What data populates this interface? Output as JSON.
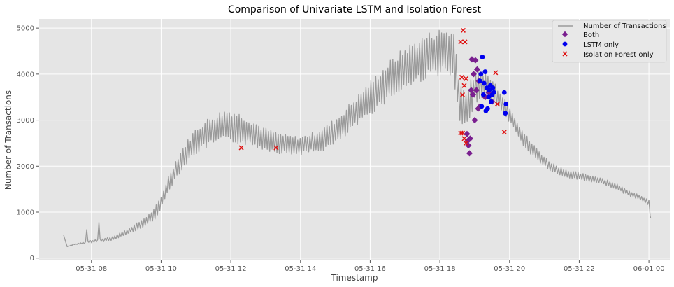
{
  "chart_data": {
    "type": "line",
    "title": "Comparison of Univariate LSTM and Isolation Forest",
    "xlabel": "Timestamp",
    "ylabel": "Number of Transactions",
    "x_axis": {
      "unit": "hour",
      "min": 6.5,
      "max": 24.6
    },
    "xticks": [
      {
        "value": 8,
        "label": "05-31 08"
      },
      {
        "value": 10,
        "label": "05-31 10"
      },
      {
        "value": 12,
        "label": "05-31 12"
      },
      {
        "value": 14,
        "label": "05-31 14"
      },
      {
        "value": 16,
        "label": "05-31 16"
      },
      {
        "value": 18,
        "label": "05-31 18"
      },
      {
        "value": 20,
        "label": "05-31 20"
      },
      {
        "value": 22,
        "label": "05-31 22"
      },
      {
        "value": 24,
        "label": "06-01 00"
      }
    ],
    "ylim": [
      -50,
      5200
    ],
    "yticks": [
      0,
      1000,
      2000,
      3000,
      4000,
      5000
    ],
    "grid": true,
    "legend_position": "top-right",
    "colors": {
      "background": "#e5e5e5",
      "grid": "#ffffff",
      "line": "#9a9a9a",
      "both": "#7a1f8f",
      "lstm": "#0000ee",
      "iforest": "#e01010"
    },
    "series": [
      {
        "name": "Number of Transactions",
        "kind": "line",
        "points": [
          [
            7.2,
            510
          ],
          [
            7.3,
            250
          ],
          [
            7.5,
            300
          ],
          [
            7.8,
            330
          ],
          [
            8.0,
            360
          ],
          [
            8.2,
            380
          ],
          [
            8.4,
            400
          ],
          [
            8.6,
            430
          ],
          [
            8.8,
            500
          ],
          [
            9.0,
            560
          ],
          [
            9.2,
            640
          ],
          [
            9.4,
            720
          ],
          [
            9.6,
            820
          ],
          [
            9.8,
            950
          ],
          [
            10.0,
            1200
          ],
          [
            10.2,
            1600
          ],
          [
            10.4,
            1900
          ],
          [
            10.6,
            2150
          ],
          [
            10.8,
            2350
          ],
          [
            11.0,
            2550
          ],
          [
            11.2,
            2650
          ],
          [
            11.4,
            2750
          ],
          [
            11.6,
            2820
          ],
          [
            11.8,
            2870
          ],
          [
            12.0,
            2870
          ],
          [
            12.2,
            2830
          ],
          [
            12.4,
            2780
          ],
          [
            12.6,
            2720
          ],
          [
            12.8,
            2650
          ],
          [
            13.0,
            2590
          ],
          [
            13.2,
            2540
          ],
          [
            13.4,
            2500
          ],
          [
            13.6,
            2470
          ],
          [
            13.8,
            2450
          ],
          [
            14.0,
            2450
          ],
          [
            14.2,
            2480
          ],
          [
            14.4,
            2520
          ],
          [
            14.6,
            2580
          ],
          [
            14.8,
            2650
          ],
          [
            15.0,
            2750
          ],
          [
            15.2,
            2880
          ],
          [
            15.4,
            3030
          ],
          [
            15.6,
            3180
          ],
          [
            15.8,
            3330
          ],
          [
            16.0,
            3480
          ],
          [
            16.2,
            3620
          ],
          [
            16.4,
            3760
          ],
          [
            16.6,
            3890
          ],
          [
            16.8,
            4010
          ],
          [
            17.0,
            4120
          ],
          [
            17.2,
            4210
          ],
          [
            17.4,
            4300
          ],
          [
            17.6,
            4380
          ],
          [
            17.8,
            4440
          ],
          [
            18.0,
            4480
          ],
          [
            18.2,
            4470
          ],
          [
            18.4,
            4380
          ],
          [
            18.55,
            3500
          ],
          [
            18.65,
            3200
          ],
          [
            18.8,
            3300
          ],
          [
            19.0,
            3700
          ],
          [
            19.2,
            3800
          ],
          [
            19.4,
            3700
          ],
          [
            19.6,
            3550
          ],
          [
            19.8,
            3350
          ],
          [
            20.0,
            3150
          ],
          [
            20.2,
            2850
          ],
          [
            20.4,
            2600
          ],
          [
            20.6,
            2400
          ],
          [
            20.8,
            2250
          ],
          [
            21.0,
            2100
          ],
          [
            21.2,
            1980
          ],
          [
            21.4,
            1900
          ],
          [
            21.6,
            1850
          ],
          [
            21.8,
            1810
          ],
          [
            22.0,
            1780
          ],
          [
            22.2,
            1750
          ],
          [
            22.4,
            1720
          ],
          [
            22.6,
            1690
          ],
          [
            22.8,
            1640
          ],
          [
            23.0,
            1580
          ],
          [
            23.2,
            1500
          ],
          [
            23.4,
            1420
          ],
          [
            23.6,
            1360
          ],
          [
            23.8,
            1300
          ],
          [
            24.0,
            1200
          ],
          [
            24.05,
            870
          ]
        ],
        "oscillation_amplitude": [
          [
            7.2,
            0
          ],
          [
            9.0,
            60
          ],
          [
            10.0,
            150
          ],
          [
            11.0,
            300
          ],
          [
            12.0,
            380
          ],
          [
            13.0,
            250
          ],
          [
            14.0,
            200
          ],
          [
            15.0,
            300
          ],
          [
            16.0,
            380
          ],
          [
            17.0,
            480
          ],
          [
            18.0,
            520
          ],
          [
            18.5,
            600
          ],
          [
            19.0,
            350
          ],
          [
            20.0,
            200
          ],
          [
            21.0,
            120
          ],
          [
            22.0,
            80
          ],
          [
            24.0,
            60
          ]
        ]
      },
      {
        "name": "Both",
        "kind": "scatter",
        "marker": "diamond",
        "points": [
          [
            18.78,
            2700
          ],
          [
            18.8,
            2550
          ],
          [
            18.82,
            2450
          ],
          [
            18.85,
            2280
          ],
          [
            18.87,
            2600
          ],
          [
            18.9,
            3650
          ],
          [
            18.92,
            4320
          ],
          [
            18.95,
            3550
          ],
          [
            18.97,
            4000
          ],
          [
            19.0,
            3000
          ],
          [
            19.02,
            4300
          ],
          [
            19.05,
            3650
          ],
          [
            19.07,
            4100
          ],
          [
            19.1,
            3250
          ],
          [
            19.12,
            3850
          ],
          [
            19.15,
            3300
          ],
          [
            19.3,
            3500
          ],
          [
            19.4,
            3600
          ],
          [
            19.5,
            3400
          ]
        ]
      },
      {
        "name": "LSTM only",
        "kind": "scatter",
        "marker": "circle",
        "points": [
          [
            19.18,
            4000
          ],
          [
            19.22,
            4370
          ],
          [
            19.25,
            3550
          ],
          [
            19.27,
            3800
          ],
          [
            19.3,
            4050
          ],
          [
            19.32,
            3200
          ],
          [
            19.35,
            3700
          ],
          [
            19.37,
            3250
          ],
          [
            19.4,
            3500
          ],
          [
            19.42,
            3650
          ],
          [
            19.45,
            3750
          ],
          [
            19.47,
            3400
          ],
          [
            19.5,
            3550
          ],
          [
            19.52,
            3700
          ],
          [
            19.55,
            3600
          ],
          [
            19.85,
            3600
          ],
          [
            19.9,
            3350
          ],
          [
            19.88,
            3150
          ],
          [
            19.2,
            3300
          ],
          [
            19.15,
            3850
          ]
        ]
      },
      {
        "name": "Isolation Forest only",
        "kind": "scatter",
        "marker": "x",
        "points": [
          [
            12.3,
            2400
          ],
          [
            13.3,
            2400
          ],
          [
            18.6,
            4700
          ],
          [
            18.63,
            3930
          ],
          [
            18.65,
            3550
          ],
          [
            18.67,
            4950
          ],
          [
            18.7,
            3750
          ],
          [
            18.72,
            4700
          ],
          [
            18.75,
            3900
          ],
          [
            18.6,
            2720
          ],
          [
            18.65,
            2720
          ],
          [
            18.7,
            2600
          ],
          [
            18.75,
            2500
          ],
          [
            19.6,
            4030
          ],
          [
            19.65,
            3350
          ],
          [
            19.85,
            2740
          ]
        ]
      }
    ]
  }
}
